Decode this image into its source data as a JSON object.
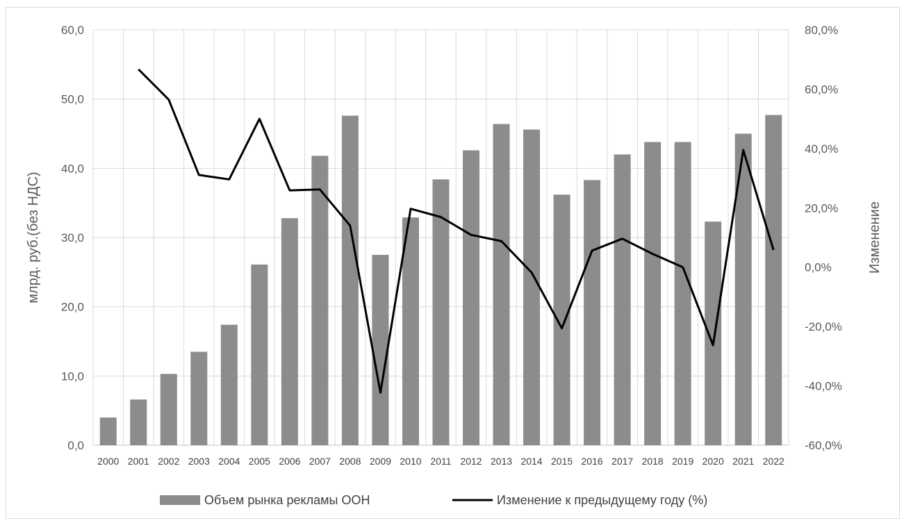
{
  "chart_data": {
    "type": "bar",
    "categories": [
      "2000",
      "2001",
      "2002",
      "2003",
      "2004",
      "2005",
      "2006",
      "2007",
      "2008",
      "2009",
      "2010",
      "2011",
      "2012",
      "2013",
      "2014",
      "2015",
      "2016",
      "2017",
      "2018",
      "2019",
      "2020",
      "2021",
      "2022"
    ],
    "series": [
      {
        "name": "Объем рынка рекламы ООН",
        "type": "bar",
        "axis": "left",
        "color": "#8c8c8c",
        "values": [
          4.0,
          6.6,
          10.3,
          13.5,
          17.4,
          26.1,
          32.8,
          41.8,
          47.6,
          27.5,
          32.9,
          38.4,
          42.6,
          46.4,
          45.6,
          36.2,
          38.3,
          42.0,
          43.8,
          43.8,
          32.3,
          45.0,
          47.7
        ]
      },
      {
        "name": "Изменение к предыдущему году (%)",
        "type": "line",
        "axis": "right",
        "color": "#000000",
        "values": [
          null,
          66.7,
          56.5,
          31.1,
          29.6,
          50.0,
          25.9,
          26.2,
          14.0,
          -42.3,
          19.7,
          16.9,
          10.9,
          8.8,
          -1.8,
          -20.6,
          5.6,
          9.6,
          4.5,
          0.0,
          -26.3,
          39.5,
          5.8
        ]
      }
    ],
    "ylabel": "млрд. руб.(без НДС)",
    "y2label": "Изменение",
    "ylim": [
      0,
      60
    ],
    "y2lim": [
      -60,
      80
    ],
    "yticks": [
      "0,0",
      "10,0",
      "20,0",
      "30,0",
      "40,0",
      "50,0",
      "60,0"
    ],
    "y2ticks": [
      "-60,0%",
      "-40,0%",
      "-20,0%",
      "0,0%",
      "20,0%",
      "40,0%",
      "60,0%",
      "80,0%"
    ],
    "grid": true,
    "legend_position": "bottom"
  }
}
